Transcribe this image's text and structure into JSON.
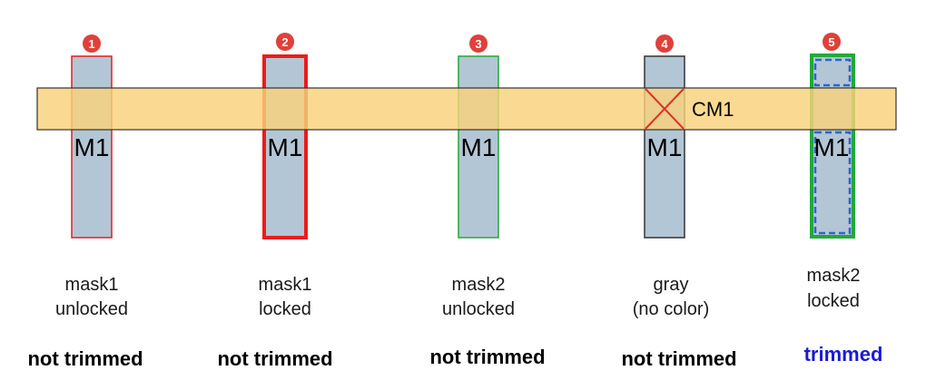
{
  "colors": {
    "metal_bar_fill": "#f9d27a",
    "metal_bar_stroke": "#333333",
    "shape_fill": "#b3c6d5",
    "badge_fill": "#e0403a",
    "mask1_outline": "#ea1c1c",
    "mask2_outline": "#22a93a",
    "gray_outline": "#333333",
    "dashed_outline": "#2a66c8",
    "cut_mark": "#e0302a",
    "trimmed_text": "#1a1ad6"
  },
  "metal_bar": {
    "label": "CM1"
  },
  "shapes": [
    {
      "badge": "1",
      "layer_label": "M1",
      "desc_line1": "mask1",
      "desc_line2": "unlocked",
      "status": "not trimmed",
      "outline": "mask1",
      "locked": false
    },
    {
      "badge": "2",
      "layer_label": "M1",
      "desc_line1": "mask1",
      "desc_line2": "locked",
      "status": "not trimmed",
      "outline": "mask1",
      "locked": true
    },
    {
      "badge": "3",
      "layer_label": "M1",
      "desc_line1": "mask2",
      "desc_line2": "unlocked",
      "status": "not trimmed",
      "outline": "mask2",
      "locked": false
    },
    {
      "badge": "4",
      "layer_label": "M1",
      "desc_line1": "gray",
      "desc_line2": "(no color)",
      "status": "not trimmed",
      "outline": "gray",
      "locked": false
    },
    {
      "badge": "5",
      "layer_label": "M1",
      "desc_line1": "mask2",
      "desc_line2": "locked",
      "status": "trimmed",
      "outline": "mask2",
      "locked": true
    }
  ]
}
